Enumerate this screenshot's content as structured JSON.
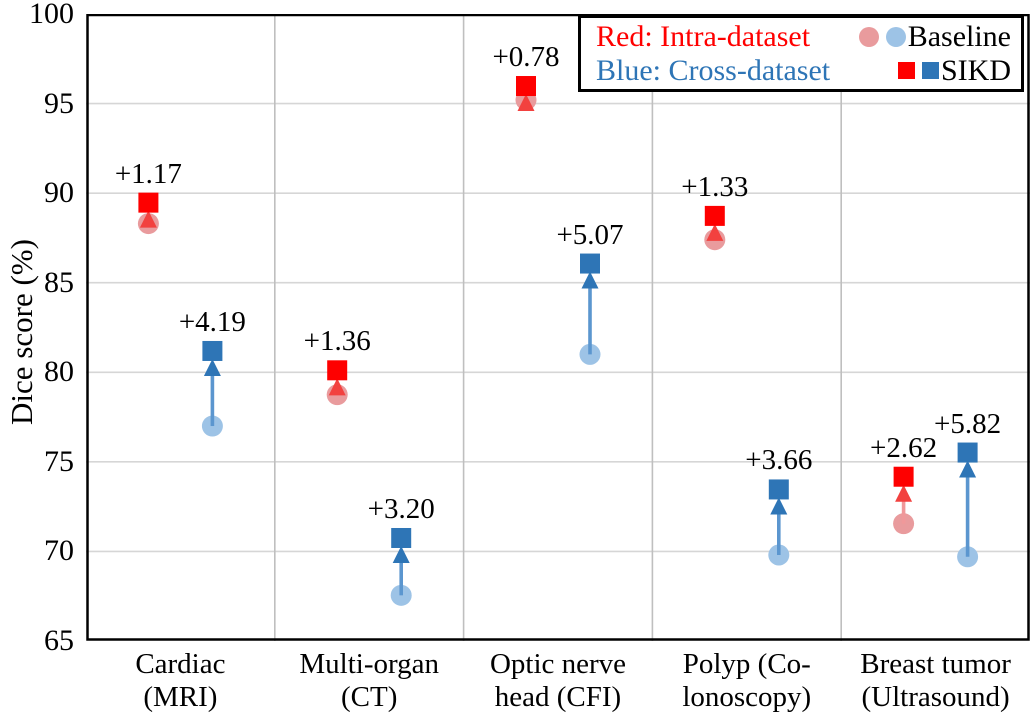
{
  "chart_data": {
    "type": "scatter",
    "title": "",
    "xlabel": "",
    "ylabel": "Dice score (%)",
    "ylim": [
      65,
      100
    ],
    "ytick_step": 5,
    "grid": true,
    "legend_position": "top-right",
    "categories": [
      "Cardiac\n(MRI)",
      "Multi-organ\n(CT)",
      "Optic nerve\nhead (CFI)",
      "Polyp (Co-\nlonoscopy)",
      "Breast tumor\n(Ultrasound)"
    ],
    "colors": {
      "plot_border": "#000000",
      "h_gridline": "#D6D6D6",
      "v_gridline": "#BFBFBF",
      "background": "#FFFFFF"
    },
    "series": [
      {
        "name": "Intra-dataset",
        "color_meaning": "Red",
        "baseline": [
          88.3,
          78.75,
          95.2,
          87.4,
          71.55
        ],
        "sikd": [
          89.47,
          80.11,
          95.98,
          88.73,
          74.17
        ],
        "delta_labels": [
          "+1.17",
          "+1.36",
          "+0.78",
          "+1.33",
          "+2.62"
        ],
        "marker_color": "#FE0000",
        "baseline_color": "#E99B9D",
        "arrow_shaft_color": "#F0989A",
        "arrow_head_color": "#F2413F",
        "x_offset": -32
      },
      {
        "name": "Cross-dataset",
        "color_meaning": "Blue",
        "baseline": [
          77.0,
          67.55,
          81.0,
          69.8,
          69.7
        ],
        "sikd": [
          81.19,
          70.75,
          86.07,
          73.46,
          75.52
        ],
        "delta_labels": [
          "+4.19",
          "+3.20",
          "+5.07",
          "+3.66",
          "+5.82"
        ],
        "marker_color": "#2E75B6",
        "baseline_color": "#9DC3E6",
        "arrow_shaft_color": "#5B96CF",
        "arrow_head_color": "#2E75B6",
        "x_offset": 32
      }
    ]
  },
  "legend": {
    "intra": "Red:  Intra-dataset",
    "cross": "Blue: Cross-dataset",
    "baseline": "Baseline",
    "sikd": "SIKD",
    "intra_color": "#FF0000",
    "cross_color": "#2E75B6"
  }
}
